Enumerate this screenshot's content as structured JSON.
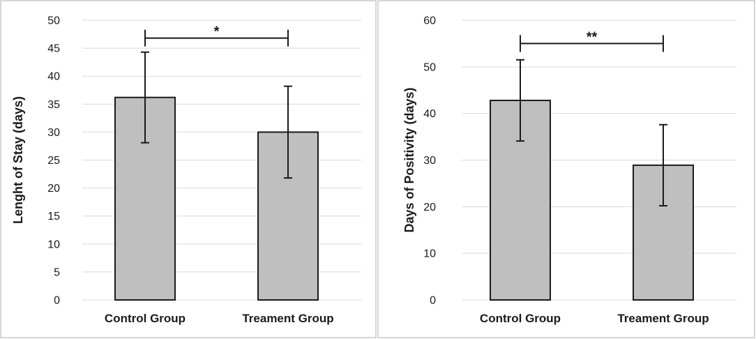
{
  "chart_data": [
    {
      "type": "bar",
      "title": "",
      "xlabel": "",
      "ylabel": "Lenght of Stay (days)",
      "categories": [
        "Control Group",
        "Treament Group"
      ],
      "values": [
        36.2,
        30.0
      ],
      "error": [
        8.1,
        8.2
      ],
      "ylim": [
        0,
        50
      ],
      "ytick_step": 5,
      "yticks": [
        "0",
        "5",
        "10",
        "15",
        "20",
        "25",
        "30",
        "35",
        "40",
        "45",
        "50"
      ],
      "grid": true,
      "significance": {
        "label": "*",
        "between": [
          0,
          1
        ],
        "level": 46.8
      }
    },
    {
      "type": "bar",
      "title": "",
      "xlabel": "",
      "ylabel": "Days of Positivity (days)",
      "categories": [
        "Control Group",
        "Treament Group"
      ],
      "values": [
        42.8,
        28.9
      ],
      "error": [
        8.7,
        8.7
      ],
      "ylim": [
        0,
        60
      ],
      "ytick_step": 10,
      "yticks": [
        "0",
        "10",
        "20",
        "30",
        "40",
        "50",
        "60"
      ],
      "grid": true,
      "significance": {
        "label": "**",
        "between": [
          0,
          1
        ],
        "level": 55.0
      }
    }
  ],
  "colors": {
    "bar_fill": "#bfbfbf",
    "bar_stroke": "#1a1a1a",
    "grid": "#d9d9d9",
    "frame": "#c8c8c8"
  }
}
